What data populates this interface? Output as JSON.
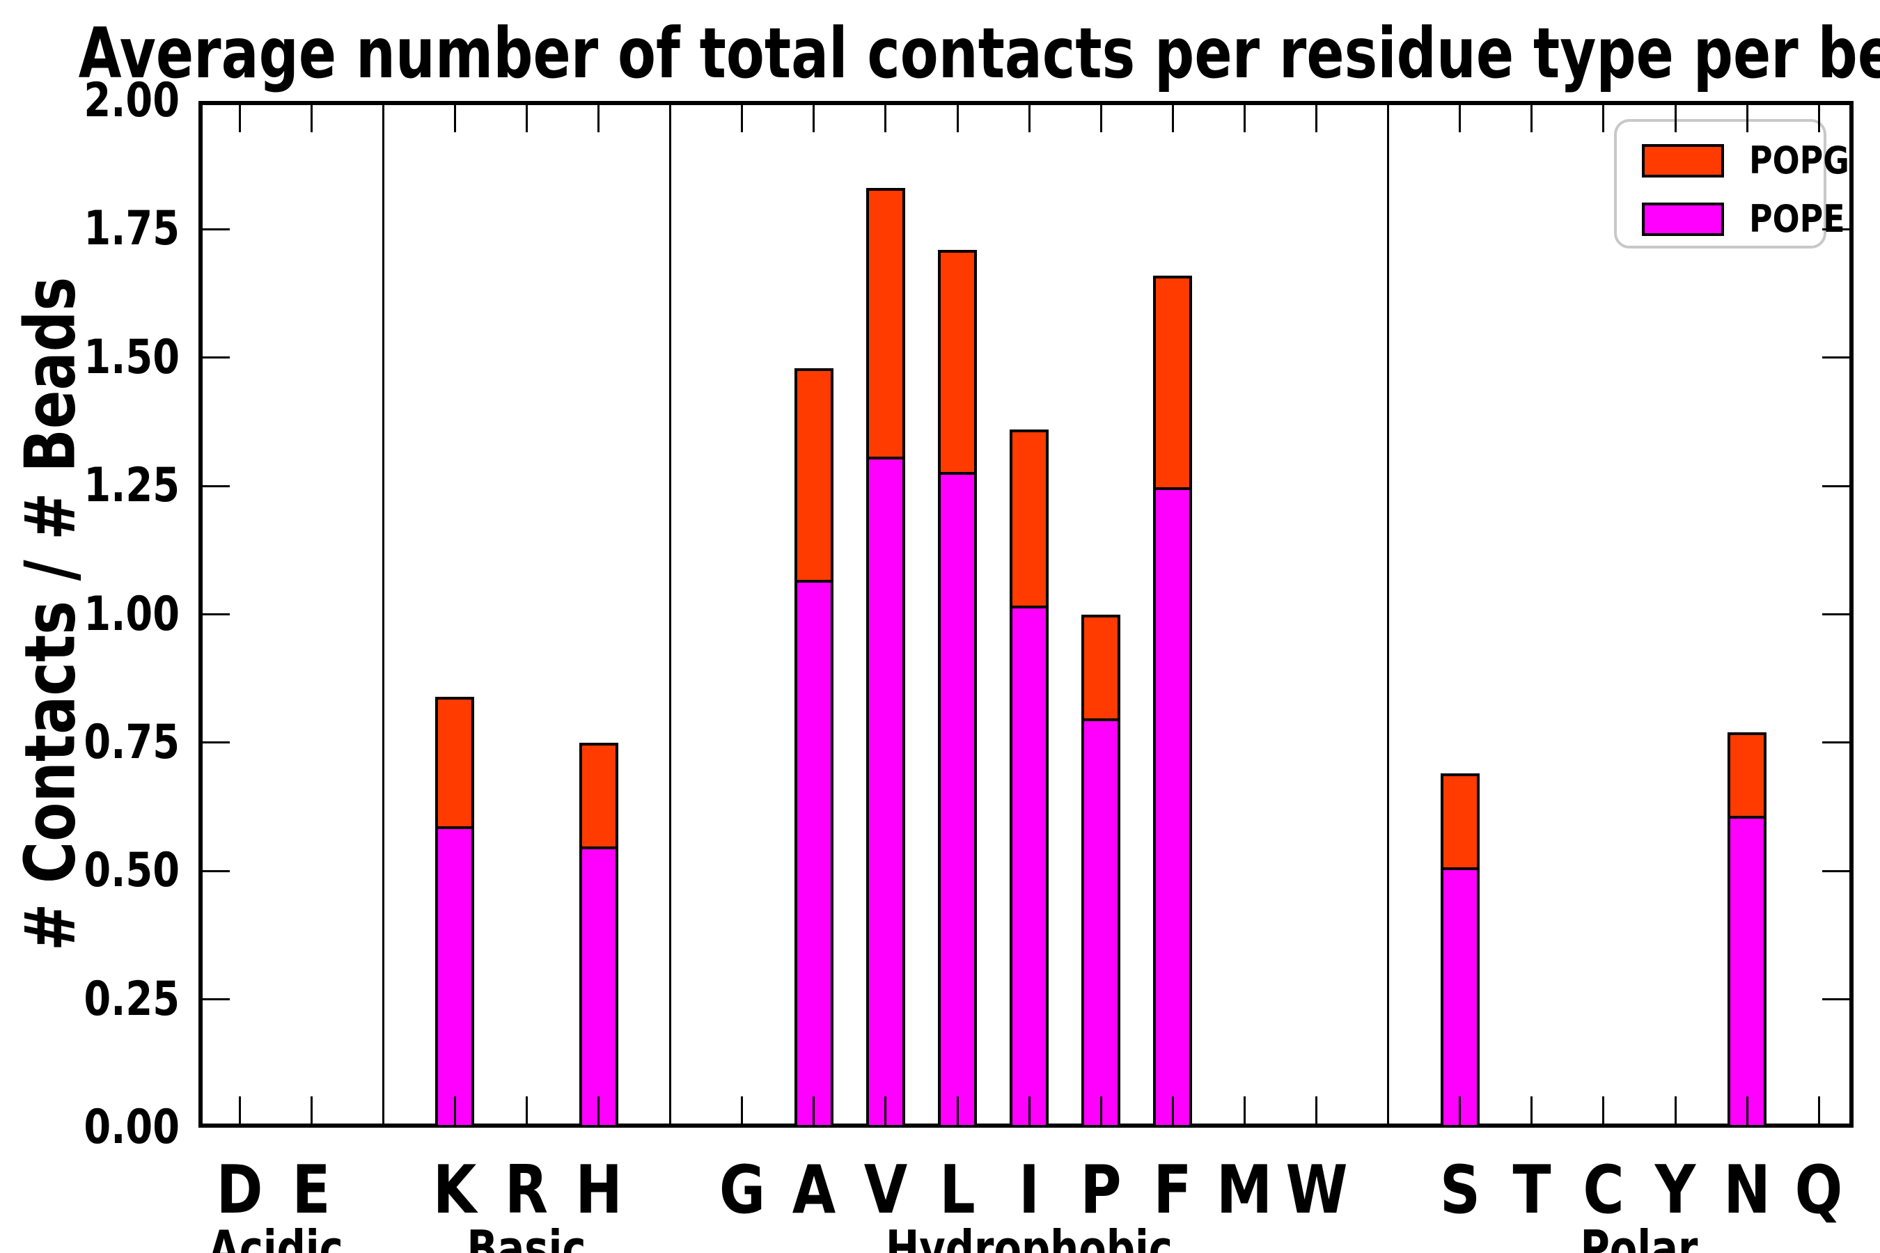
{
  "chart_data": {
    "type": "bar",
    "stacked": true,
    "title": "Average number of total contacts per residue type per bead",
    "ylabel": "# Contacts / # Beads",
    "xlabel": "",
    "ylim": [
      0,
      2.0
    ],
    "ytick_step": 0.25,
    "ytick_labels": [
      "0.00",
      "0.25",
      "0.50",
      "0.75",
      "1.00",
      "1.25",
      "1.50",
      "1.75",
      "2.00"
    ],
    "grid": false,
    "legend_position": "upper right",
    "background_color": "#FFFFFF",
    "bar_edge_color": "#000000",
    "categories": [
      "D",
      "E",
      "K",
      "R",
      "H",
      "G",
      "A",
      "V",
      "L",
      "I",
      "P",
      "F",
      "M",
      "W",
      "S",
      "T",
      "C",
      "Y",
      "N",
      "Q"
    ],
    "groups": [
      {
        "label": "Acidic",
        "residues": [
          "D",
          "E"
        ]
      },
      {
        "label": "Basic",
        "residues": [
          "K",
          "R",
          "H"
        ]
      },
      {
        "label": "Hydrophobic",
        "residues": [
          "G",
          "A",
          "V",
          "L",
          "I",
          "P",
          "F",
          "M",
          "W"
        ]
      },
      {
        "label": "Polar",
        "residues": [
          "S",
          "T",
          "C",
          "Y",
          "N",
          "Q"
        ]
      }
    ],
    "series": [
      {
        "name": "POPE",
        "color": "#FF00FF",
        "values": [
          0,
          0,
          0.59,
          0,
          0.55,
          0,
          1.07,
          1.31,
          1.28,
          1.02,
          0.8,
          1.25,
          0,
          0,
          0.51,
          0,
          0,
          0,
          0.61,
          0
        ]
      },
      {
        "name": "POPG",
        "color": "#FF3B00",
        "values": [
          0,
          0,
          0.25,
          0,
          0.2,
          0,
          0.41,
          0.52,
          0.43,
          0.34,
          0.2,
          0.41,
          0,
          0,
          0.18,
          0,
          0,
          0,
          0.16,
          0
        ]
      }
    ],
    "legend": [
      {
        "name": "POPG",
        "color": "#FF3B00"
      },
      {
        "name": "POPE",
        "color": "#FF00FF"
      }
    ]
  }
}
